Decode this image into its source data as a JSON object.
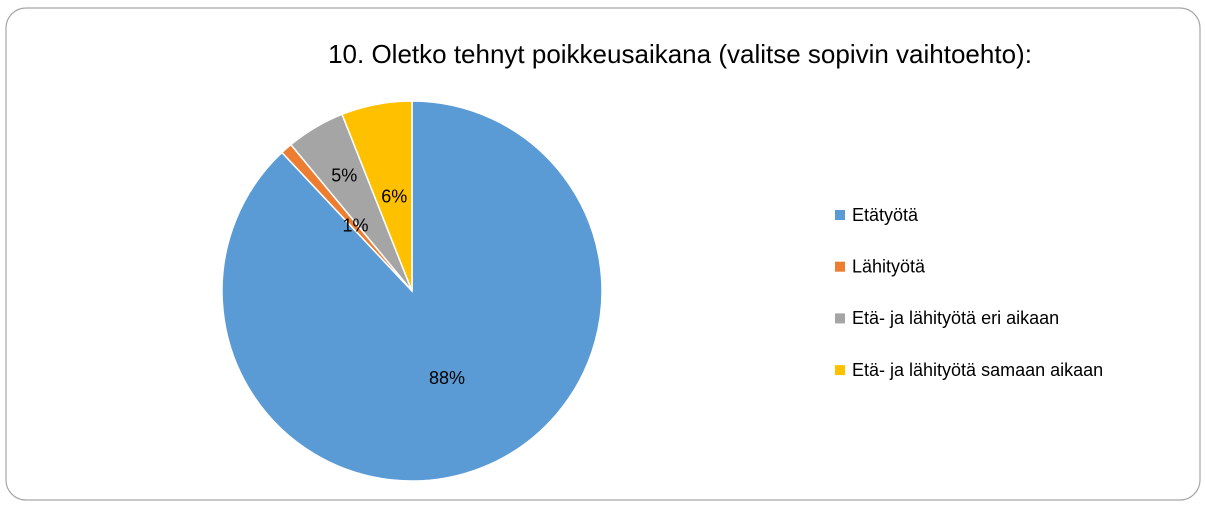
{
  "chart_data": {
    "type": "pie",
    "title": "10. Oletko tehnyt poikkeusaikana (valitse sopivin vaihtoehto):",
    "categories": [
      "Etätyötä",
      "Lähityötä",
      "Etä- ja lähityötä eri aikaan",
      "Etä- ja lähityötä samaan aikaan"
    ],
    "values": [
      88,
      1,
      5,
      6
    ],
    "value_labels": [
      "88%",
      "1%",
      "5%",
      "6%"
    ],
    "colors": [
      "#5b9bd5",
      "#ed7d31",
      "#a5a5a5",
      "#ffc000"
    ],
    "legend": "right"
  }
}
